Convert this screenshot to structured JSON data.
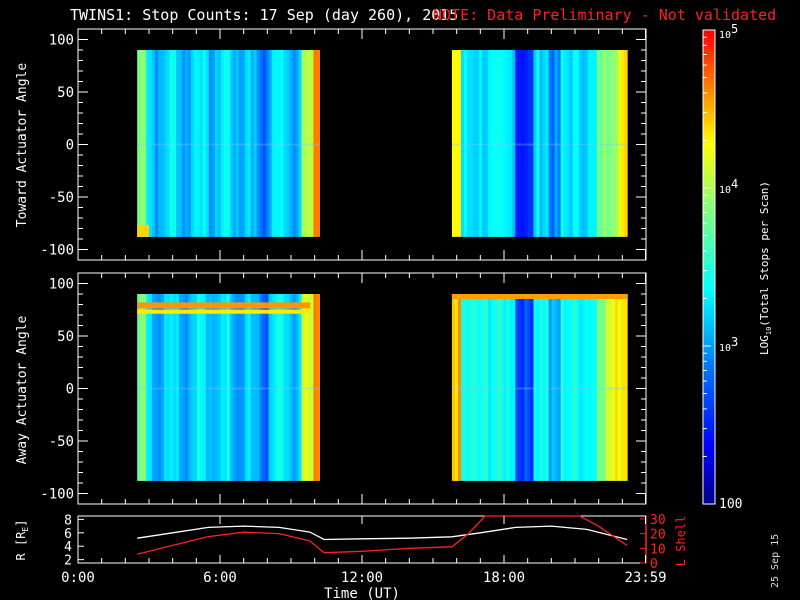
{
  "header": {
    "title": "TWINS1: Stop Counts: 17 Sep (day 260), 2015",
    "note": "NOTE: Data Preliminary - Not validated"
  },
  "footer_date": "25 Sep 15",
  "colors": {
    "background": "#000000",
    "note_red": "#ff2020",
    "r_line": "#ffffff",
    "lshell_line": "#ff2020"
  },
  "chart_data": [
    {
      "type": "heatmap",
      "name": "toward",
      "ylabel": "Toward Actuator Angle",
      "ylim": [
        -110,
        110
      ],
      "yticks": [
        100,
        50,
        0,
        -50,
        -100
      ],
      "ytick_labels": [
        "100",
        "50",
        "0",
        "-50",
        "-100"
      ],
      "xlim": [
        0,
        24
      ],
      "data_blocks": [
        {
          "t_start": 2.5,
          "t_end": 10.2,
          "angle_min": -88,
          "angle_max": 90
        },
        {
          "t_start": 15.8,
          "t_end": 23.2,
          "angle_min": -88,
          "angle_max": 90
        }
      ]
    },
    {
      "type": "heatmap",
      "name": "away",
      "ylabel": "Away Actuator Angle",
      "ylim": [
        -110,
        110
      ],
      "yticks": [
        100,
        50,
        0,
        -50,
        -100
      ],
      "ytick_labels": [
        "100",
        "50",
        "0",
        "-50",
        "-100"
      ],
      "xlim": [
        0,
        24
      ],
      "data_blocks": [
        {
          "t_start": 2.5,
          "t_end": 10.2,
          "angle_min": -88,
          "angle_max": 90
        },
        {
          "t_start": 15.8,
          "t_end": 23.2,
          "angle_min": -88,
          "angle_max": 90
        }
      ]
    },
    {
      "type": "line",
      "name": "orbit",
      "xlabel": "Time (UT)",
      "xlim": [
        0,
        24
      ],
      "xtick_values": [
        0,
        6,
        12,
        18,
        23.98
      ],
      "xtick_labels": [
        "0:00",
        "6:00",
        "12:00",
        "18:00",
        "23:59"
      ],
      "ylabel_left": "R [R",
      "ylabel_left_sub": "E",
      "ylabel_left_close": "]",
      "ylim_left": [
        1.5,
        8.5
      ],
      "yticks_left": [
        2,
        4,
        6,
        8
      ],
      "ytick_labels_left": [
        "2",
        "4",
        "6",
        "8"
      ],
      "ylabel_right": "L Shell",
      "ylim_right": [
        0,
        32
      ],
      "yticks_right": [
        0,
        10,
        20,
        30
      ],
      "ytick_labels_right": [
        "0",
        "10",
        "20",
        "30"
      ],
      "series": [
        {
          "name": "R",
          "axis": "left",
          "x": [
            2.5,
            4,
            5.5,
            7,
            8.5,
            9.8,
            10.4,
            12,
            14,
            15.8,
            17,
            18.5,
            20,
            21.5,
            23.2
          ],
          "y": [
            5.2,
            6.0,
            6.8,
            7.0,
            6.8,
            6.1,
            5.0,
            5.1,
            5.2,
            5.4,
            6.0,
            6.8,
            7.0,
            6.5,
            5.0
          ]
        },
        {
          "name": "L Shell",
          "axis": "right",
          "x": [
            2.5,
            4,
            5.5,
            7,
            8.5,
            9.8,
            10.4,
            12,
            14,
            15.8,
            16.5,
            17.2,
            21.2,
            22,
            23.2
          ],
          "y": [
            6,
            12,
            18,
            21,
            20,
            15,
            7,
            8,
            10,
            11,
            20,
            32,
            32,
            25,
            12
          ]
        }
      ]
    },
    {
      "type": "colorbar",
      "name": "colorbar",
      "label": "LOG10(Total Stops per Scan)",
      "label_main": "LOG",
      "label_sub": "10",
      "label_rest": "(Total Stops per Scan)",
      "range": [
        100,
        100000
      ],
      "tick_labels": [
        {
          "base": "10",
          "exp": "5",
          "value": 100000
        },
        {
          "base": "10",
          "exp": "4",
          "value": 10000
        },
        {
          "base": "10",
          "exp": "3",
          "value": 1000
        },
        {
          "base": "100",
          "exp": "",
          "value": 100
        }
      ]
    }
  ]
}
